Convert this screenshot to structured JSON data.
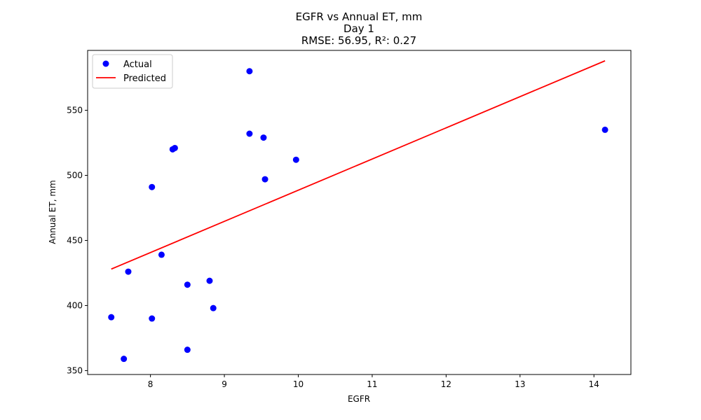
{
  "chart_data": {
    "type": "scatter",
    "title": "EGFR vs Annual ET, mm",
    "subtitle": "Day 1",
    "metrics": "RMSE: 56.95, R²: 0.27",
    "xlabel": "EGFR",
    "ylabel": "Annual ET, mm",
    "xlim": [
      7.15,
      14.5
    ],
    "ylim": [
      347,
      596
    ],
    "xticks": [
      8,
      9,
      10,
      11,
      12,
      13,
      14
    ],
    "yticks": [
      350,
      400,
      450,
      500,
      550
    ],
    "grid": false,
    "legend_placement": "top-left",
    "series": [
      {
        "name": "Actual",
        "kind": "scatter",
        "color": "#0000ff",
        "points": [
          [
            7.47,
            391
          ],
          [
            7.64,
            359
          ],
          [
            7.7,
            426
          ],
          [
            8.02,
            491
          ],
          [
            8.02,
            390
          ],
          [
            8.15,
            439
          ],
          [
            8.3,
            520
          ],
          [
            8.33,
            521
          ],
          [
            8.5,
            416
          ],
          [
            8.5,
            366
          ],
          [
            8.8,
            419
          ],
          [
            8.85,
            398
          ],
          [
            9.34,
            580
          ],
          [
            9.34,
            532
          ],
          [
            9.53,
            529
          ],
          [
            9.55,
            497
          ],
          [
            9.97,
            512
          ],
          [
            14.15,
            535
          ]
        ]
      },
      {
        "name": "Predicted",
        "kind": "line",
        "color": "#ff0000",
        "points": [
          [
            7.47,
            428
          ],
          [
            14.15,
            588
          ]
        ]
      }
    ]
  }
}
